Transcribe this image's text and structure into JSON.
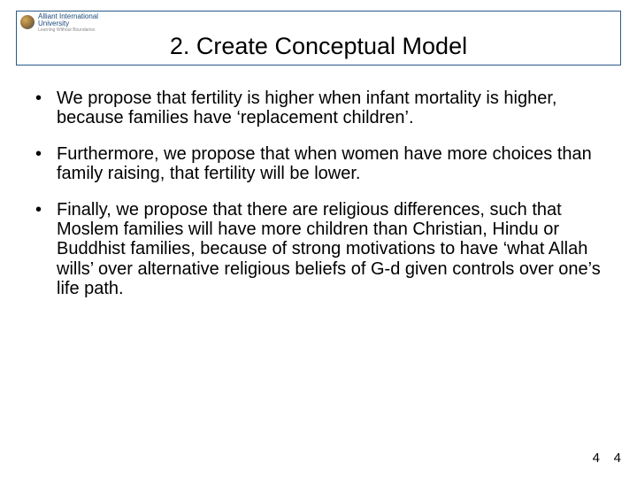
{
  "logo": {
    "line1": "Alliant International",
    "line2": "University",
    "tagline": "Learning Without Boundaries"
  },
  "title": "2. Create Conceptual Model",
  "bullets": [
    "We propose that fertility is higher when infant mortality is higher, because families have ‘replacement children’.",
    "Furthermore, we propose that when women have more choices than family raising, that fertility will be lower.",
    "Finally, we propose that there are religious differences, such that Moslem families will have more children than Christian, Hindu or Buddhist families, because of strong motivations to have ‘what Allah wills’ over alternative religious beliefs of G-d given controls over one’s life path."
  ],
  "page_number_left": "4",
  "page_number_right": "4",
  "colors": {
    "border": "#2a5a8a",
    "text": "#000000",
    "background": "#ffffff"
  }
}
